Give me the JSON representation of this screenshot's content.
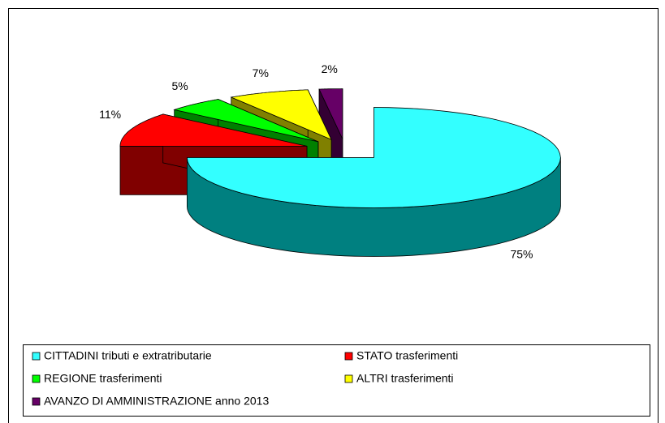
{
  "chart_data": {
    "type": "pie3d",
    "categories": [
      "CITTADINI tributi e extratributarie",
      "STATO trasferimenti",
      "REGIONE trasferimenti",
      "ALTRI trasferimenti",
      "AVANZO DI AMMINISTRAZIONE anno 2013"
    ],
    "values": [
      75,
      11,
      5,
      7,
      2
    ],
    "value_labels": [
      "75%",
      "11%",
      "5%",
      "7%",
      "2%"
    ],
    "colors": [
      "#33ffff",
      "#ff0000",
      "#00ff00",
      "#ffff00",
      "#660066"
    ],
    "side_colors": [
      "#008080",
      "#800000",
      "#008000",
      "#808000",
      "#330033"
    ],
    "legend": "bottom"
  }
}
